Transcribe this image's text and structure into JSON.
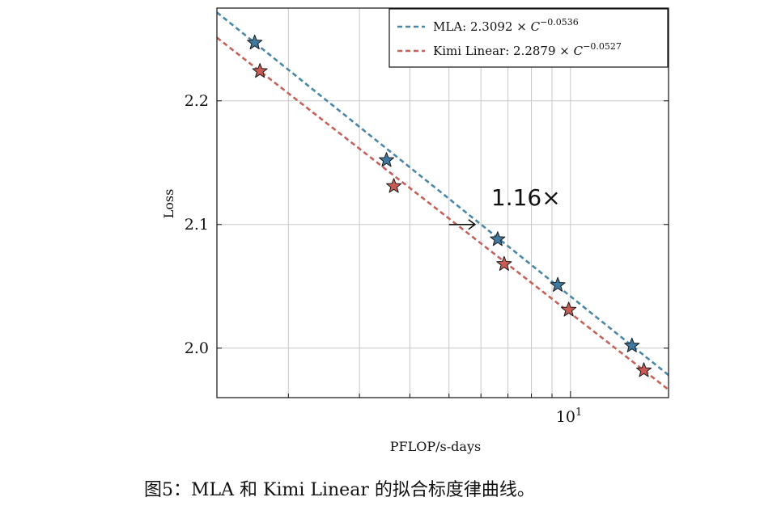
{
  "chart_data": {
    "type": "line",
    "title": "",
    "xlabel": "PFLOP/s-days",
    "ylabel": "Loss",
    "x_scale": "log",
    "xlim": [
      1.33,
      17.5
    ],
    "ylim": [
      1.96,
      2.275
    ],
    "grid": true,
    "x_major_ticks": [
      {
        "value": 10,
        "base": "10",
        "exp": "1"
      }
    ],
    "x_minor_ticks": [
      2,
      3,
      4,
      5,
      6,
      7,
      8,
      9
    ],
    "y_ticks": [
      {
        "value": 2.0,
        "label": "2.0"
      },
      {
        "value": 2.1,
        "label": "2.1"
      },
      {
        "value": 2.2,
        "label": "2.2"
      }
    ],
    "legend_position": "top-right",
    "series": [
      {
        "name": "MLA",
        "fit_coef": "2.3092",
        "fit_exp": "−0.0536",
        "color": "#4a86a8",
        "marker_fill": "#3f79a0",
        "points": [
          {
            "x": 1.65,
            "y": 2.247
          },
          {
            "x": 3.5,
            "y": 2.152
          },
          {
            "x": 6.6,
            "y": 2.088
          },
          {
            "x": 9.3,
            "y": 2.051
          },
          {
            "x": 14.2,
            "y": 2.002
          }
        ],
        "fit_range": [
          1.33,
          17.5
        ]
      },
      {
        "name": "Kimi Linear",
        "fit_coef": "2.2879",
        "fit_exp": "−0.0527",
        "color": "#c4625a",
        "marker_fill": "#c95b55",
        "points": [
          {
            "x": 1.7,
            "y": 2.224
          },
          {
            "x": 3.65,
            "y": 2.131
          },
          {
            "x": 6.85,
            "y": 2.068
          },
          {
            "x": 9.9,
            "y": 2.031
          },
          {
            "x": 15.2,
            "y": 1.982
          }
        ],
        "fit_range": [
          1.33,
          17.5
        ]
      }
    ],
    "annotations": [
      {
        "text": "1.16×",
        "arrow_from": {
          "x": 5.0,
          "y": 2.1
        },
        "arrow_to": {
          "x": 5.8,
          "y": 2.1
        }
      }
    ]
  },
  "caption": "图5：MLA 和 Kimi Linear 的拟合标度律曲线。"
}
